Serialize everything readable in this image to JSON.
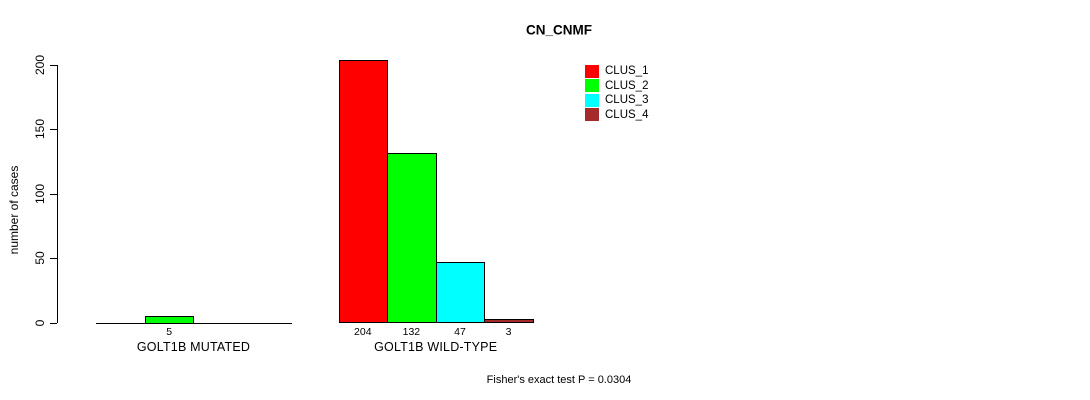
{
  "title": "CN_CNMF",
  "footer": "Fisher's exact test P = 0.0304",
  "legend": [
    {
      "label": "CLUS_1",
      "color": "#FF0000"
    },
    {
      "label": "CLUS_2",
      "color": "#00FF00"
    },
    {
      "label": "CLUS_3",
      "color": "#00FFFF"
    },
    {
      "label": "CLUS_4",
      "color": "#A52A2A"
    }
  ],
  "chart_data": {
    "type": "bar",
    "title": "CN_CNMF",
    "xlabel": "",
    "ylabel": "number of cases",
    "ylim": [
      0,
      200
    ],
    "yticks": [
      0,
      50,
      100,
      150,
      200
    ],
    "grid": false,
    "legend_position": "top-right",
    "series": [
      "CLUS_1",
      "CLUS_2",
      "CLUS_3",
      "CLUS_4"
    ],
    "series_colors": [
      "#FF0000",
      "#00FF00",
      "#00FFFF",
      "#A52A2A"
    ],
    "groups": [
      {
        "label": "GOLT1B MUTATED",
        "values": [
          0,
          5,
          0,
          0
        ],
        "bar_labels": [
          "",
          "5",
          "",
          ""
        ]
      },
      {
        "label": "GOLT1B WILD-TYPE",
        "values": [
          204,
          132,
          47,
          3
        ],
        "bar_labels": [
          "204",
          "132",
          "47",
          "3"
        ]
      }
    ],
    "annotation": "Fisher's exact test P = 0.0304"
  }
}
